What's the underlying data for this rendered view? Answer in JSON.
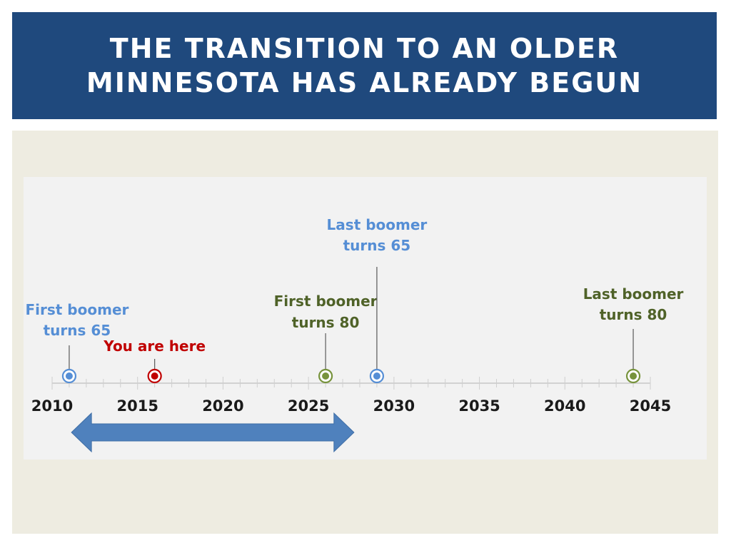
{
  "title": {
    "line1": "THE TRANSITION TO AN OLDER",
    "line2": "MINNESOTA HAS ALREADY BEGUN"
  },
  "colors": {
    "header_bg": "#1f497d",
    "content_bg": "#eeece1",
    "panel_bg": "#f2f2f2",
    "blue": "#558ed5",
    "green": "#77933c",
    "green_text": "#4f6228",
    "red": "#c00000",
    "arrow": "#4f81bd"
  },
  "timeline": {
    "year_start": 2010,
    "year_end": 2045,
    "years": [
      "2010",
      "2015",
      "2020",
      "2025",
      "2030",
      "2035",
      "2040",
      "2045"
    ],
    "events": [
      {
        "name": "first-boomer-65",
        "year": 2011,
        "color": "blue",
        "lines": [
          "First boomer",
          "turns 65"
        ]
      },
      {
        "name": "you-are-here",
        "year": 2016,
        "color": "red",
        "lines": [
          "You are here"
        ]
      },
      {
        "name": "first-boomer-80",
        "year": 2026,
        "color": "green",
        "lines": [
          "First boomer",
          "turns 80"
        ]
      },
      {
        "name": "last-boomer-65",
        "year": 2029,
        "color": "blue",
        "lines": [
          "Last boomer",
          "turns 65"
        ]
      },
      {
        "name": "last-boomer-80",
        "year": 2044,
        "color": "green",
        "lines": [
          "Last boomer",
          "turns 80"
        ]
      }
    ],
    "range_arrow": {
      "from_year": 2011.3,
      "to_year": 2027.2
    }
  }
}
